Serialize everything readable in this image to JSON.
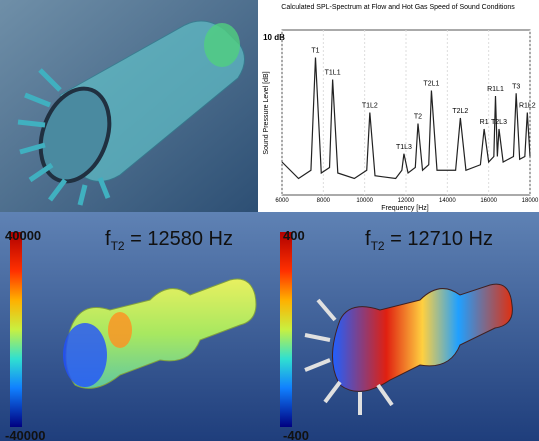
{
  "chart_data": {
    "type": "line",
    "title": "Calculated SPL-Spectrum at Flow and Hot Gas Speed of Sound Conditions",
    "x_label": "Frequency [Hz]",
    "y_label": "Sound Pressure Level [dB]",
    "scale_label": "10 dB",
    "xlim": [
      6000,
      18000
    ],
    "xticks": [
      6000,
      8000,
      10000,
      12000,
      14000,
      16000,
      18000
    ],
    "ylim": [
      0,
      60
    ],
    "grid": true,
    "series": [
      {
        "color": "#222222",
        "x": [
          6000,
          6800,
          7400,
          7620,
          7900,
          8300,
          8450,
          8700,
          9500,
          10100,
          10250,
          10500,
          11500,
          11800,
          11900,
          12100,
          12450,
          12580,
          12800,
          13100,
          13230,
          13500,
          14400,
          14630,
          14900,
          15600,
          15780,
          16000,
          16250,
          16330,
          16420,
          16500,
          16700,
          17200,
          17330,
          17500,
          17750,
          17870,
          18000
        ],
        "values": [
          12,
          6,
          9,
          50,
          8,
          10,
          42,
          8,
          6,
          9,
          30,
          7,
          6,
          9,
          15,
          8,
          10,
          26,
          9,
          11,
          38,
          9,
          9,
          28,
          9,
          11,
          24,
          12,
          14,
          36,
          14,
          24,
          12,
          14,
          37,
          13,
          14,
          30,
          14
        ]
      }
    ],
    "annotations": [
      {
        "text": "T1",
        "x": 7620,
        "y": 50
      },
      {
        "text": "T1L1",
        "x": 8450,
        "y": 42
      },
      {
        "text": "T1L2",
        "x": 10250,
        "y": 30
      },
      {
        "text": "T1L3",
        "x": 11900,
        "y": 15
      },
      {
        "text": "T2",
        "x": 12580,
        "y": 26
      },
      {
        "text": "T2L1",
        "x": 13230,
        "y": 38
      },
      {
        "text": "T2L2",
        "x": 14630,
        "y": 28
      },
      {
        "text": "R1",
        "x": 15780,
        "y": 24
      },
      {
        "text": "R1L1",
        "x": 16330,
        "y": 36
      },
      {
        "text": "T2L3",
        "x": 16500,
        "y": 24
      },
      {
        "text": "T3",
        "x": 17330,
        "y": 37
      },
      {
        "text": "R1L2",
        "x": 17870,
        "y": 30
      }
    ]
  },
  "panels": [
    {
      "f": "f",
      "sub": "T2",
      "rest": " = 12580 Hz",
      "max": "40000",
      "min": "-40000"
    },
    {
      "f": "f",
      "sub": "T2",
      "rest": " = 12710 Hz",
      "max": "400",
      "min": "-400"
    }
  ]
}
